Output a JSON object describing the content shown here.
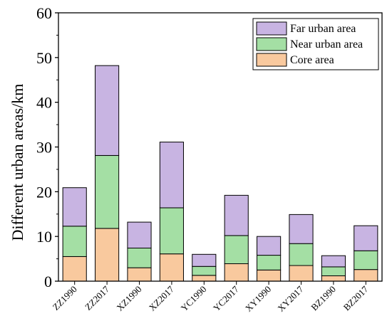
{
  "chart_data": {
    "type": "bar",
    "stacked": true,
    "ylabel": "Different urban areas/km",
    "ylim": [
      0,
      60
    ],
    "yticks": [
      0,
      10,
      20,
      30,
      40,
      50,
      60
    ],
    "grid": false,
    "legend_position": "top-right",
    "categories": [
      "ZZ1990",
      "ZZ2017",
      "XZ1990",
      "XZ2017",
      "YC1990",
      "YC2017",
      "XY1990",
      "XY2017",
      "BZ1990",
      "BZ2017"
    ],
    "series": [
      {
        "name": "Core area",
        "color": "#f9c99e",
        "values": [
          5.5,
          11.8,
          3.0,
          6.1,
          1.3,
          3.9,
          2.5,
          3.5,
          1.2,
          2.6
        ]
      },
      {
        "name": "Near urban area",
        "color": "#a4dfa4",
        "values": [
          6.8,
          16.3,
          4.4,
          10.3,
          2.0,
          6.3,
          3.3,
          4.9,
          2.0,
          4.2
        ]
      },
      {
        "name": "Far urban area",
        "color": "#c8b4e2",
        "values": [
          8.6,
          20.1,
          5.8,
          14.7,
          2.7,
          9.0,
          4.2,
          6.5,
          2.5,
          5.6
        ]
      }
    ]
  }
}
